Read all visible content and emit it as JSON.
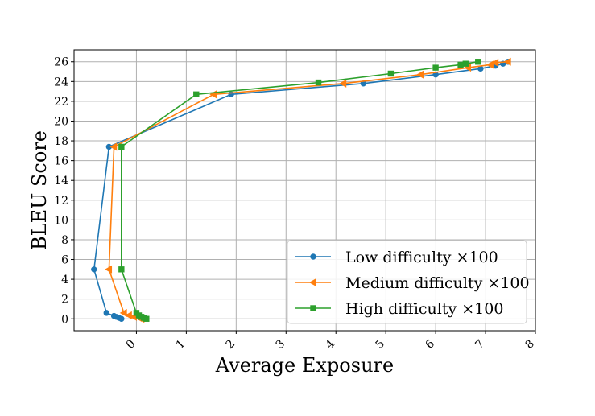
{
  "chart_data": {
    "type": "line",
    "title": "",
    "xlabel": "Average Exposure",
    "ylabel": "BLEU Score",
    "xlim": [
      -1.25,
      8
    ],
    "ylim": [
      -1.2,
      27.2
    ],
    "grid": true,
    "legend_position": "lower-right",
    "x_ticks": [
      0,
      1,
      2,
      3,
      4,
      5,
      6,
      7,
      8
    ],
    "y_ticks": [
      0,
      2,
      4,
      6,
      8,
      10,
      12,
      14,
      16,
      18,
      20,
      22,
      24,
      26
    ],
    "series": [
      {
        "name": "Low difficulty ×100",
        "color": "#1f77b4",
        "marker": "circle",
        "x": [
          -0.3,
          -0.35,
          -0.4,
          -0.45,
          -0.6,
          -0.85,
          -0.55,
          1.9,
          4.55,
          6.0,
          6.9,
          7.2,
          7.35,
          7.45
        ],
        "y": [
          0.0,
          0.1,
          0.2,
          0.3,
          0.6,
          5.0,
          17.4,
          22.7,
          23.8,
          24.7,
          25.3,
          25.6,
          25.8,
          26.0
        ]
      },
      {
        "name": "Medium difficulty ×100",
        "color": "#ff7f0e",
        "marker": "triangle-left",
        "x": [
          0.1,
          0.05,
          -0.05,
          -0.15,
          -0.25,
          -0.55,
          -0.45,
          1.55,
          4.15,
          5.7,
          6.65,
          7.1,
          7.2,
          7.45
        ],
        "y": [
          0.0,
          0.1,
          0.2,
          0.35,
          0.6,
          5.0,
          17.4,
          22.7,
          23.8,
          24.7,
          25.4,
          25.7,
          25.9,
          26.0
        ]
      },
      {
        "name": "High difficulty ×100",
        "color": "#2ca02c",
        "marker": "square",
        "x": [
          0.2,
          0.15,
          0.1,
          0.05,
          0.0,
          -0.3,
          -0.3,
          1.2,
          3.65,
          5.1,
          6.0,
          6.5,
          6.6,
          6.85
        ],
        "y": [
          0.0,
          0.1,
          0.2,
          0.35,
          0.6,
          5.0,
          17.4,
          22.7,
          23.9,
          24.8,
          25.4,
          25.7,
          25.8,
          26.0
        ]
      }
    ]
  }
}
